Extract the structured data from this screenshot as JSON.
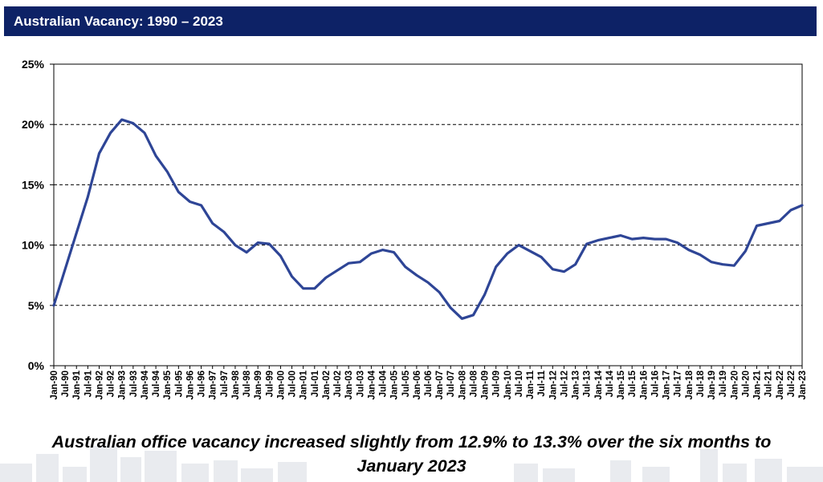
{
  "header": {
    "title": "Australian Vacancy: 1990 – 2023"
  },
  "caption": {
    "line1": "Australian office vacancy increased slightly from 12.9% to 13.3% over the six months to",
    "line2": "January 2023"
  },
  "colors": {
    "header_bg": "#0d2266",
    "line": "#2e4596",
    "grid": "#000000"
  },
  "chart_data": {
    "type": "line",
    "title": "",
    "xlabel": "",
    "ylabel": "",
    "ylim": [
      0,
      25
    ],
    "y_ticks": [
      "0%",
      "5%",
      "10%",
      "15%",
      "20%",
      "25%"
    ],
    "grid": "horizontal dashed",
    "categories": [
      "Jan-90",
      "Jul-90",
      "Jan-91",
      "Jul-91",
      "Jan-92",
      "Jul-92",
      "Jan-93",
      "Jul-93",
      "Jan-94",
      "Jul-94",
      "Jan-95",
      "Jul-95",
      "Jan-96",
      "Jul-96",
      "Jan-97",
      "Jul-97",
      "Jan-98",
      "Jul-98",
      "Jan-99",
      "Jul-99",
      "Jan-00",
      "Jul-00",
      "Jan-01",
      "Jul-01",
      "Jan-02",
      "Jul-02",
      "Jan-03",
      "Jul-03",
      "Jan-04",
      "Jul-04",
      "Jan-05",
      "Jul-05",
      "Jan-06",
      "Jul-06",
      "Jan-07",
      "Jul-07",
      "Jan-08",
      "Jul-08",
      "Jan-09",
      "Jul-09",
      "Jan-10",
      "Jul-10",
      "Jan-11",
      "Jul-11",
      "Jan-12",
      "Jul-12",
      "Jan-13",
      "Jul-13",
      "Jan-14",
      "Jul-14",
      "Jan-15",
      "Jul-15",
      "Jan-16",
      "Jul-16",
      "Jan-17",
      "Jul-17",
      "Jan-18",
      "Jul-18",
      "Jan-19",
      "Jul-19",
      "Jan-20",
      "Jul-20",
      "Jan-21",
      "Jul-21",
      "Jan-22",
      "Jul-22",
      "Jan-23"
    ],
    "series": [
      {
        "values": [
          5.0,
          8.0,
          11.0,
          14.0,
          17.6,
          19.3,
          20.4,
          20.1,
          19.3,
          17.4,
          16.1,
          14.4,
          13.6,
          13.3,
          11.8,
          11.1,
          10.0,
          9.4,
          10.2,
          10.1,
          9.1,
          7.4,
          6.4,
          6.4,
          7.3,
          7.9,
          8.5,
          8.6,
          9.3,
          9.6,
          9.4,
          8.2,
          7.5,
          6.9,
          6.1,
          4.8,
          3.9,
          4.2,
          5.9,
          8.2,
          9.3,
          10.0,
          9.5,
          9.0,
          8.0,
          7.8,
          8.4,
          10.1,
          10.4,
          10.6,
          10.8,
          10.5,
          10.6,
          10.5,
          10.5,
          10.2,
          9.6,
          9.2,
          8.6,
          8.4,
          8.3,
          9.5,
          11.6,
          11.8,
          12.0,
          12.9,
          13.3
        ]
      }
    ]
  }
}
